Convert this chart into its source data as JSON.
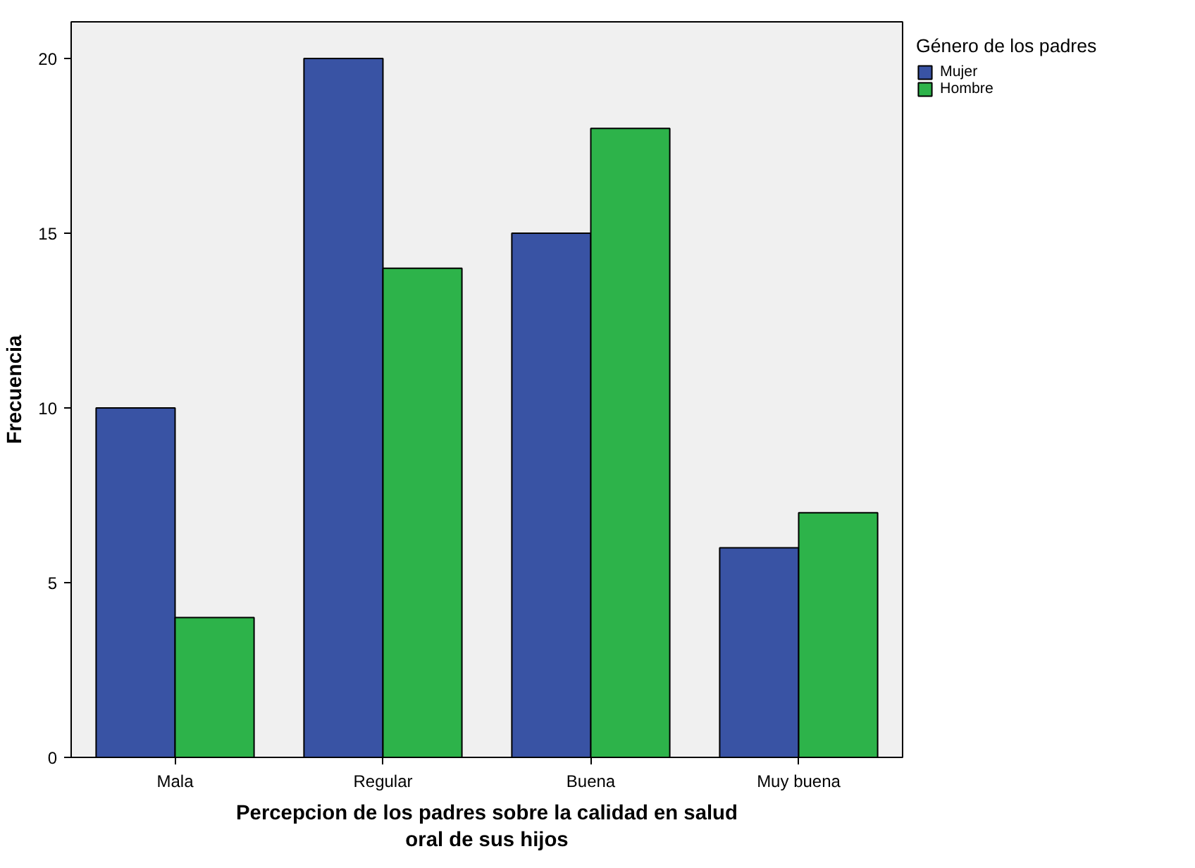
{
  "chart_data": {
    "type": "bar",
    "xlabel": "Percepcion de los padres sobre la calidad en salud oral de sus hijos",
    "ylabel": "Frecuencia",
    "legend_title": "Género de los padres",
    "categories": [
      "Mala",
      "Regular",
      "Buena",
      "Muy buena"
    ],
    "series": [
      {
        "name": "Mujer",
        "color": "#3953a4",
        "values": [
          10,
          20,
          15,
          6
        ]
      },
      {
        "name": "Hombre",
        "color": "#2db34a",
        "values": [
          4,
          14,
          18,
          7
        ]
      }
    ],
    "ylim": [
      0,
      21.05
    ],
    "yticks": [
      0,
      5,
      10,
      15,
      20
    ],
    "grid": false,
    "legend": "top right"
  }
}
